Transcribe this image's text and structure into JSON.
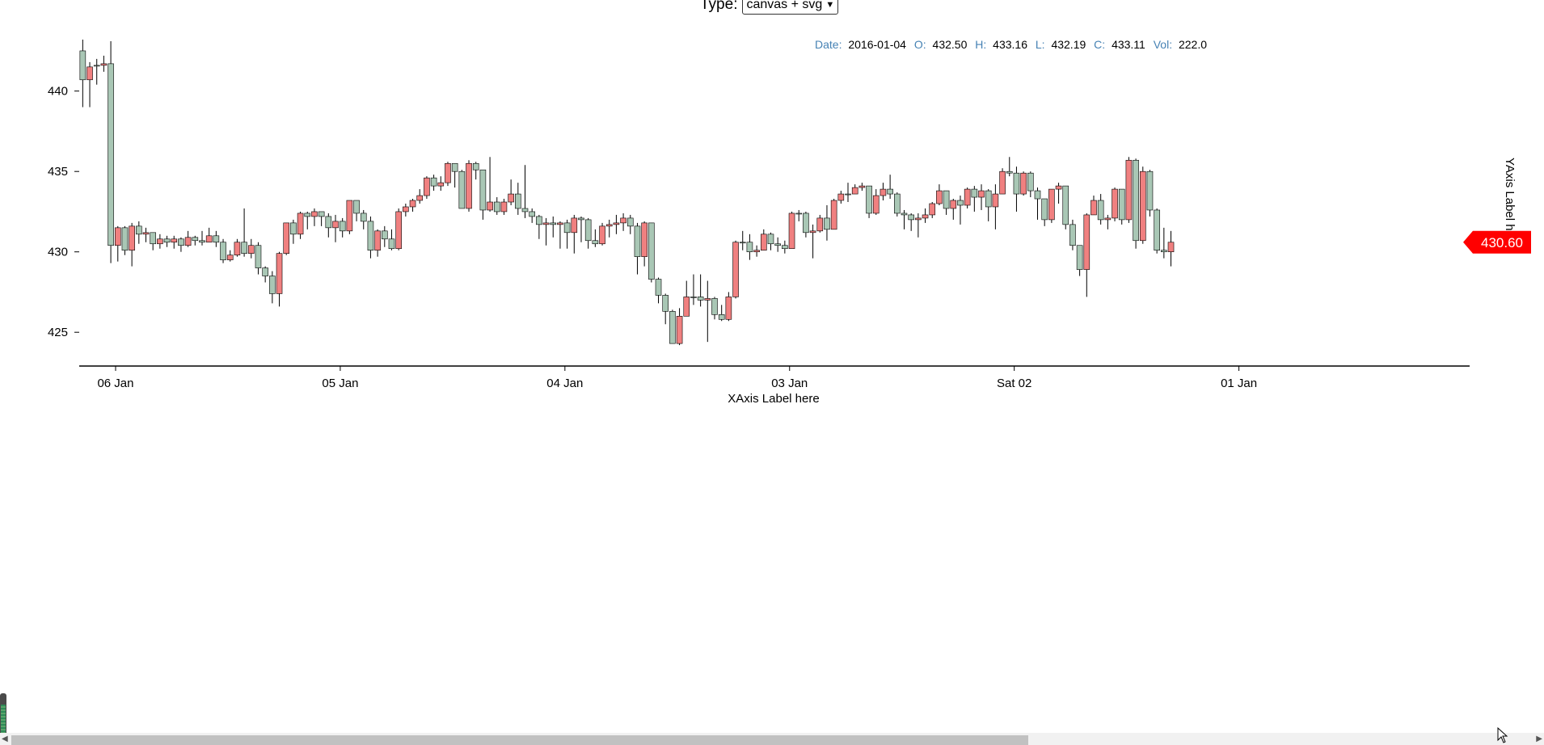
{
  "controls": {
    "type_label": "Type:",
    "type_value": "canvas + svg"
  },
  "tooltip": {
    "date_key": "Date:",
    "date": "2016-01-04",
    "open_key": "O:",
    "open": "432.50",
    "high_key": "H:",
    "high": "433.16",
    "low_key": "L:",
    "low": "432.19",
    "close_key": "C:",
    "close": "433.11",
    "vol_key": "Vol:",
    "vol": "222.0"
  },
  "colors": {
    "up": "#a9c7b5",
    "down": "#f08080",
    "current_price": "#ff0000"
  },
  "chart_data": {
    "type": "candlestick",
    "xlabel": "XAxis Label here",
    "ylabel": "YAxis Label here",
    "ylim": [
      423,
      443
    ],
    "y_ticks": [
      425,
      430,
      435,
      440
    ],
    "x_ticks": [
      {
        "label": "06 Jan",
        "index": 4.68
      },
      {
        "label": "05 Jan",
        "index": 36.68
      },
      {
        "label": "04 Jan",
        "index": 68.68
      },
      {
        "label": "03 Jan",
        "index": 100.68
      },
      {
        "label": "Sat 02",
        "index": 132.68
      },
      {
        "label": "01 Jan",
        "index": 164.68
      }
    ],
    "current_price": "430.60",
    "current_price_value": 430.6,
    "candles": [
      [
        440.7,
        443.2,
        439,
        442.5
      ],
      [
        441.5,
        441.8,
        439,
        440.7
      ],
      [
        441.6,
        442,
        440.4,
        441.6
      ],
      [
        441.7,
        442.2,
        441.2,
        441.6
      ],
      [
        430.4,
        443.1,
        429.3,
        441.7
      ],
      [
        431.5,
        431.6,
        429.4,
        430.4
      ],
      [
        430.1,
        431.6,
        429.8,
        431.5
      ],
      [
        431.6,
        431.8,
        429.1,
        430.1
      ],
      [
        431.1,
        431.9,
        430.5,
        431.6
      ],
      [
        431.2,
        431.5,
        430.6,
        431.1
      ],
      [
        430.5,
        431.2,
        430.1,
        431.2
      ],
      [
        430.8,
        431.1,
        430.2,
        430.5
      ],
      [
        430.6,
        431.0,
        430.3,
        430.8
      ],
      [
        430.8,
        431.0,
        430.2,
        430.6
      ],
      [
        430.4,
        430.9,
        430.0,
        430.8
      ],
      [
        430.9,
        431.3,
        430.3,
        430.4
      ],
      [
        430.7,
        431.0,
        430.4,
        430.9
      ],
      [
        430.6,
        431.3,
        430.4,
        430.7
      ],
      [
        431.0,
        431.5,
        430.6,
        430.6
      ],
      [
        430.6,
        431.3,
        430.3,
        431.0
      ],
      [
        429.5,
        430.8,
        429.3,
        430.6
      ],
      [
        429.8,
        430.1,
        429.4,
        429.5
      ],
      [
        430.6,
        430.8,
        429.7,
        429.8
      ],
      [
        429.9,
        432.7,
        429.7,
        430.6
      ],
      [
        430.4,
        430.8,
        429.6,
        429.9
      ],
      [
        429.0,
        430.6,
        428.6,
        430.4
      ],
      [
        428.5,
        429.1,
        428.1,
        429.0
      ],
      [
        427.4,
        428.8,
        426.8,
        428.5
      ],
      [
        429.9,
        430.0,
        426.6,
        427.4
      ],
      [
        431.8,
        431.8,
        429.8,
        429.9
      ],
      [
        431.1,
        432.0,
        430.5,
        431.8
      ],
      [
        432.4,
        432.5,
        430.8,
        431.1
      ],
      [
        432.2,
        432.5,
        431.4,
        432.4
      ],
      [
        432.5,
        432.7,
        431.6,
        432.2
      ],
      [
        432.2,
        432.4,
        431.6,
        432.5
      ],
      [
        431.5,
        432.4,
        430.9,
        432.2
      ],
      [
        431.9,
        432.3,
        430.6,
        431.5
      ],
      [
        431.3,
        432.1,
        430.9,
        431.9
      ],
      [
        433.2,
        433.2,
        431.1,
        431.3
      ],
      [
        432.4,
        433.2,
        431.9,
        433.2
      ],
      [
        431.9,
        432.6,
        431.4,
        432.4
      ],
      [
        430.1,
        432.2,
        429.6,
        431.9
      ],
      [
        431.3,
        431.4,
        429.7,
        430.1
      ],
      [
        430.8,
        431.6,
        430.3,
        431.3
      ],
      [
        430.2,
        431.4,
        430.1,
        430.8
      ],
      [
        432.5,
        432.7,
        430.1,
        430.2
      ],
      [
        432.8,
        433.0,
        432.2,
        432.5
      ],
      [
        433.2,
        433.3,
        432.5,
        432.8
      ],
      [
        433.5,
        433.9,
        433.0,
        433.2
      ],
      [
        434.6,
        434.7,
        433.3,
        433.5
      ],
      [
        434.1,
        434.8,
        433.8,
        434.6
      ],
      [
        434.3,
        434.7,
        433.8,
        434.1
      ],
      [
        435.5,
        435.6,
        434.1,
        434.3
      ],
      [
        435.0,
        435.5,
        434.0,
        435.5
      ],
      [
        432.7,
        435.1,
        432.7,
        435.0
      ],
      [
        435.5,
        435.7,
        432.5,
        432.7
      ],
      [
        435.1,
        435.6,
        434.5,
        435.5
      ],
      [
        432.6,
        435.1,
        432.0,
        435.1
      ],
      [
        433.1,
        435.9,
        432.5,
        432.6
      ],
      [
        432.5,
        433.4,
        432.3,
        433.1
      ],
      [
        433.1,
        433.3,
        432.3,
        432.5
      ],
      [
        433.6,
        434.5,
        432.9,
        433.1
      ],
      [
        432.7,
        434.3,
        432.3,
        433.6
      ],
      [
        432.5,
        435.4,
        432.1,
        432.7
      ],
      [
        432.2,
        432.7,
        431.8,
        432.5
      ],
      [
        431.7,
        432.3,
        430.8,
        432.2
      ],
      [
        431.8,
        432.1,
        430.4,
        431.7
      ],
      [
        431.7,
        432.2,
        430.9,
        431.8
      ],
      [
        431.8,
        431.9,
        430.2,
        431.7
      ],
      [
        431.2,
        432.0,
        430.2,
        431.8
      ],
      [
        432.1,
        432.3,
        429.9,
        431.2
      ],
      [
        432.0,
        432.2,
        430.6,
        432.1
      ],
      [
        430.7,
        432.1,
        430.2,
        432.0
      ],
      [
        430.5,
        431.4,
        430.3,
        430.7
      ],
      [
        431.6,
        431.8,
        430.4,
        430.5
      ],
      [
        431.7,
        432.0,
        430.9,
        431.6
      ],
      [
        431.8,
        432.3,
        431.1,
        431.7
      ],
      [
        432.1,
        432.4,
        431.3,
        431.8
      ],
      [
        431.6,
        432.3,
        431.1,
        432.1
      ],
      [
        429.7,
        431.8,
        428.6,
        431.6
      ],
      [
        431.8,
        431.9,
        429.1,
        429.7
      ],
      [
        428.3,
        431.8,
        428.1,
        431.8
      ],
      [
        427.3,
        428.4,
        426.8,
        428.3
      ],
      [
        426.3,
        427.4,
        425.5,
        427.3
      ],
      [
        424.3,
        426.4,
        424.3,
        426.3
      ],
      [
        426.0,
        426.5,
        424.2,
        424.3
      ],
      [
        427.2,
        428.2,
        426.1,
        426.0
      ],
      [
        427.2,
        428.6,
        426.7,
        427.2
      ],
      [
        427.0,
        428.6,
        426.6,
        427.2
      ],
      [
        427.1,
        428.2,
        424.4,
        427.0
      ],
      [
        426.1,
        427.2,
        425.8,
        427.1
      ],
      [
        425.8,
        426.7,
        425.7,
        426.1
      ],
      [
        427.2,
        427.5,
        425.7,
        425.8
      ],
      [
        430.6,
        430.7,
        427.1,
        427.2
      ],
      [
        430.6,
        431.3,
        430.1,
        430.6
      ],
      [
        430.0,
        431.1,
        429.5,
        430.6
      ],
      [
        430.1,
        430.4,
        429.7,
        430.0
      ],
      [
        431.1,
        431.4,
        430.1,
        430.1
      ],
      [
        430.5,
        431.2,
        430.1,
        431.1
      ],
      [
        430.4,
        430.9,
        430.0,
        430.5
      ],
      [
        430.2,
        430.7,
        429.9,
        430.4
      ],
      [
        432.4,
        432.5,
        430.2,
        430.2
      ],
      [
        432.4,
        432.6,
        431.9,
        432.4
      ],
      [
        431.2,
        432.5,
        430.9,
        432.4
      ],
      [
        431.3,
        431.7,
        429.6,
        431.2
      ],
      [
        432.1,
        432.3,
        431.2,
        431.3
      ],
      [
        431.4,
        432.9,
        430.7,
        432.1
      ],
      [
        433.2,
        433.3,
        431.4,
        431.4
      ],
      [
        433.6,
        433.8,
        433.0,
        433.2
      ],
      [
        433.6,
        434.3,
        433.1,
        433.6
      ],
      [
        434.0,
        434.2,
        433.6,
        433.6
      ],
      [
        434.1,
        434.3,
        433.8,
        434.0
      ],
      [
        432.4,
        434.1,
        432.1,
        434.1
      ],
      [
        433.5,
        433.9,
        432.3,
        432.4
      ],
      [
        433.9,
        434.3,
        433.2,
        433.5
      ],
      [
        433.6,
        434.8,
        433.3,
        433.9
      ],
      [
        432.4,
        433.7,
        432.2,
        433.6
      ],
      [
        432.3,
        432.6,
        431.4,
        432.4
      ],
      [
        432.0,
        432.4,
        431.3,
        432.3
      ],
      [
        432.1,
        432.4,
        430.9,
        432.0
      ],
      [
        432.3,
        432.7,
        431.8,
        432.1
      ],
      [
        433.0,
        433.1,
        432.1,
        432.3
      ],
      [
        433.8,
        434.2,
        432.9,
        433.0
      ],
      [
        432.7,
        433.8,
        432.3,
        433.8
      ],
      [
        433.2,
        433.3,
        432.0,
        432.7
      ],
      [
        432.9,
        433.5,
        431.7,
        433.2
      ],
      [
        433.9,
        434.0,
        432.7,
        432.9
      ],
      [
        433.4,
        434.1,
        432.5,
        433.9
      ],
      [
        433.8,
        434.2,
        432.6,
        433.4
      ],
      [
        432.8,
        433.9,
        431.9,
        433.8
      ],
      [
        433.6,
        434.2,
        431.4,
        432.8
      ],
      [
        435.0,
        435.2,
        433.6,
        433.6
      ],
      [
        434.9,
        435.9,
        434.7,
        435.0
      ],
      [
        433.6,
        435.3,
        432.5,
        434.9
      ],
      [
        434.9,
        435.0,
        433.5,
        433.6
      ],
      [
        433.8,
        435.0,
        433.4,
        434.9
      ],
      [
        433.3,
        434.0,
        432.0,
        433.8
      ],
      [
        432.0,
        433.3,
        431.6,
        433.3
      ],
      [
        433.9,
        433.9,
        431.8,
        432.0
      ],
      [
        434.1,
        434.3,
        433.0,
        433.9
      ],
      [
        431.7,
        434.1,
        431.4,
        434.1
      ],
      [
        430.4,
        432.0,
        430.1,
        431.7
      ],
      [
        428.9,
        430.4,
        428.5,
        430.4
      ],
      [
        432.3,
        432.4,
        427.2,
        428.9
      ],
      [
        433.2,
        433.5,
        432.3,
        432.3
      ],
      [
        432.0,
        433.6,
        431.7,
        433.2
      ],
      [
        432.1,
        432.3,
        431.4,
        432.0
      ],
      [
        433.9,
        434.0,
        431.9,
        432.1
      ],
      [
        432.0,
        433.9,
        431.7,
        433.9
      ],
      [
        435.7,
        435.9,
        431.8,
        432.0
      ],
      [
        430.7,
        435.8,
        430.2,
        435.7
      ],
      [
        435.0,
        435.3,
        430.5,
        430.7
      ],
      [
        432.6,
        435.1,
        432.2,
        435.0
      ],
      [
        430.1,
        432.7,
        429.9,
        432.6
      ],
      [
        430.0,
        431.5,
        429.6,
        430.1
      ],
      [
        430.6,
        431.3,
        429.1,
        430.0
      ]
    ]
  }
}
